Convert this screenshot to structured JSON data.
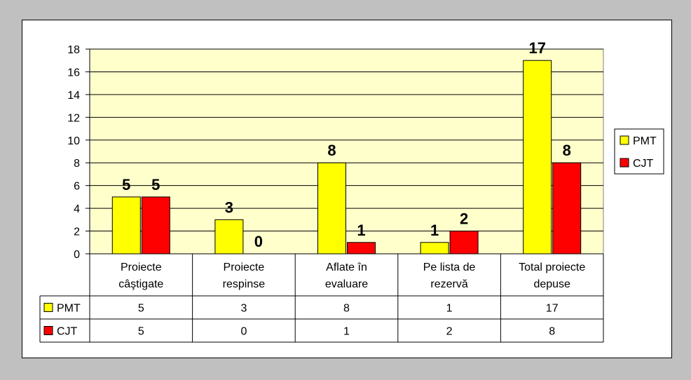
{
  "chart_data": {
    "type": "bar",
    "categories": [
      [
        "Proiecte",
        "câştigate"
      ],
      [
        "Proiecte",
        "respinse"
      ],
      [
        "Aflate în",
        "evaluare"
      ],
      [
        "Pe lista de",
        "rezervă"
      ],
      [
        "Total proiecte",
        "depuse"
      ]
    ],
    "series": [
      {
        "name": "PMT",
        "color": "#ffff00",
        "values": [
          5,
          3,
          8,
          1,
          17
        ]
      },
      {
        "name": "CJT",
        "color": "#ff0000",
        "values": [
          5,
          0,
          1,
          2,
          8
        ]
      }
    ],
    "ylim": [
      0,
      18
    ],
    "yticks": [
      0,
      2,
      4,
      6,
      8,
      10,
      12,
      14,
      16,
      18
    ],
    "plot_background": "#ffffcc",
    "grid": true,
    "legend": "right",
    "data_table": true
  }
}
